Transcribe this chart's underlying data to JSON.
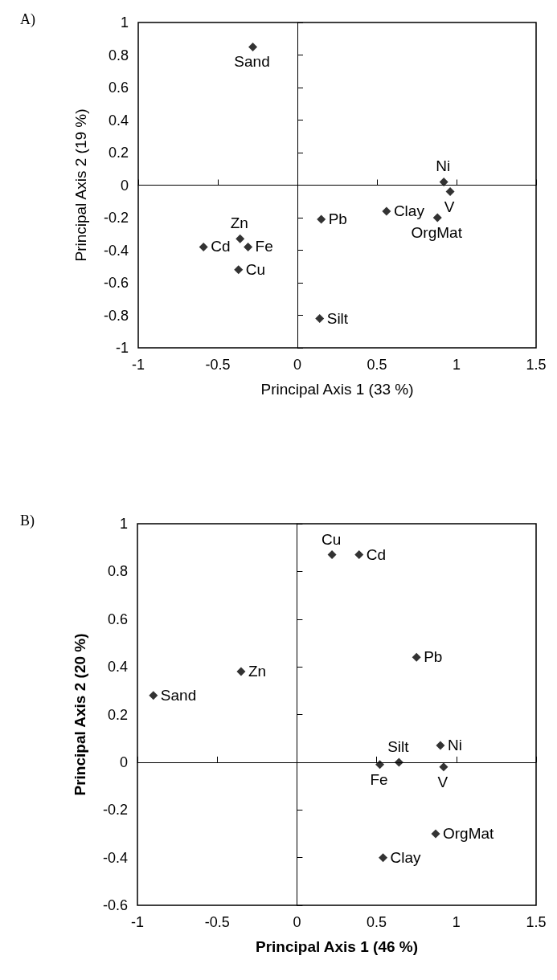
{
  "chart_data": [
    {
      "type": "scatter",
      "title": "A)",
      "xlabel": "Principal Axis 1 (33 %)",
      "ylabel": "Principal Axis 2 (19 %)",
      "x": [
        -0.28,
        0.92,
        0.96,
        0.15,
        0.56,
        0.88,
        -0.59,
        -0.36,
        -0.31,
        -0.37,
        0.14
      ],
      "values": [
        0.85,
        0.02,
        -0.04,
        -0.21,
        -0.16,
        -0.2,
        -0.38,
        -0.33,
        -0.38,
        -0.52,
        -0.82
      ],
      "color": "#000000",
      "marker": "diamond",
      "annotations": [
        {
          "text": "Sand",
          "x": -0.28,
          "y": 0.85
        },
        {
          "text": "Ni",
          "x": 0.92,
          "y": 0.02
        },
        {
          "text": "V",
          "x": 0.96,
          "y": -0.04
        },
        {
          "text": "Pb",
          "x": 0.15,
          "y": -0.21
        },
        {
          "text": "Clay",
          "x": 0.56,
          "y": -0.16
        },
        {
          "text": "OrgMat",
          "x": 0.88,
          "y": -0.2
        },
        {
          "text": "Cd",
          "x": -0.59,
          "y": -0.38
        },
        {
          "text": "Zn",
          "x": -0.36,
          "y": -0.33
        },
        {
          "text": "Fe",
          "x": -0.31,
          "y": -0.38
        },
        {
          "text": "Cu",
          "x": -0.37,
          "y": -0.52
        },
        {
          "text": "Silt",
          "x": 0.14,
          "y": -0.82
        }
      ],
      "xlim": [
        -1,
        1.5
      ],
      "xticks": [
        -1,
        -0.5,
        0,
        0.5,
        1,
        1.5
      ],
      "ylim": [
        -1,
        1
      ],
      "yticks": [
        -1,
        -0.8,
        -0.6,
        -0.4,
        -0.2,
        0,
        0.2,
        0.4,
        0.6,
        0.8,
        1
      ]
    },
    {
      "type": "scatter",
      "title": "B)",
      "xlabel": "Principal Axis 1 (46 %)",
      "ylabel": "Principal Axis 2 (20 %)",
      "x": [
        0.22,
        0.39,
        0.75,
        -0.35,
        -0.9,
        0.9,
        0.64,
        0.52,
        0.92,
        0.87,
        0.54
      ],
      "values": [
        0.87,
        0.87,
        0.44,
        0.38,
        0.28,
        0.07,
        0.0,
        -0.01,
        -0.02,
        -0.3,
        -0.4
      ],
      "color": "#000000",
      "marker": "diamond",
      "annotations": [
        {
          "text": "Cu",
          "x": 0.22,
          "y": 0.87
        },
        {
          "text": "Cd",
          "x": 0.39,
          "y": 0.87
        },
        {
          "text": "Pb",
          "x": 0.75,
          "y": 0.44
        },
        {
          "text": "Zn",
          "x": -0.35,
          "y": 0.38
        },
        {
          "text": "Sand",
          "x": -0.9,
          "y": 0.28
        },
        {
          "text": "Ni",
          "x": 0.9,
          "y": 0.07
        },
        {
          "text": "Silt",
          "x": 0.64,
          "y": 0.0
        },
        {
          "text": "Fe",
          "x": 0.52,
          "y": -0.01
        },
        {
          "text": "V",
          "x": 0.92,
          "y": -0.02
        },
        {
          "text": "OrgMat",
          "x": 0.87,
          "y": -0.3
        },
        {
          "text": "Clay",
          "x": 0.54,
          "y": -0.4
        }
      ],
      "xlim": [
        -1,
        1.5
      ],
      "xticks": [
        -1,
        -0.5,
        0,
        0.5,
        1,
        1.5
      ],
      "ylim": [
        -0.6,
        1
      ],
      "yticks": [
        -0.6,
        -0.4,
        -0.2,
        0,
        0.2,
        0.4,
        0.6,
        0.8,
        1
      ]
    }
  ]
}
